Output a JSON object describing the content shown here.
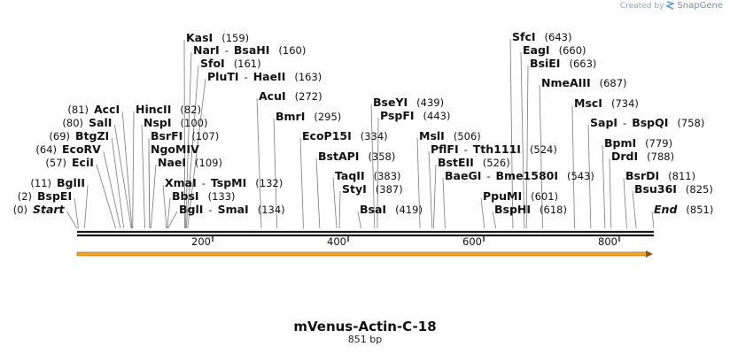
{
  "credit": {
    "prefix": "Created by",
    "brand": "SnapGene"
  },
  "plasmid": {
    "name": "mVenus-Actin-C-18",
    "length_label": "851 bp",
    "length": 851
  },
  "ruler": {
    "ticks": [
      {
        "value": 200,
        "label": "200"
      },
      {
        "value": 400,
        "label": "400"
      },
      {
        "value": 600,
        "label": "600"
      },
      {
        "value": 800,
        "label": "800"
      }
    ]
  },
  "feature": {
    "name": "",
    "color": "#f5a623",
    "direction": "forward"
  },
  "colors": {
    "backbone": "#1a1a1a",
    "leader": "#7a7a7a",
    "feature": "#f5a623",
    "feature_outline": "#8a5a10"
  },
  "sites": [
    {
      "names": [
        "KasI"
      ],
      "pos": "(159)",
      "bp": 159
    },
    {
      "names": [
        "NarI",
        "BsaHI"
      ],
      "pos": "(160)",
      "bp": 160
    },
    {
      "names": [
        "SfoI"
      ],
      "pos": "(161)",
      "bp": 161
    },
    {
      "names": [
        "PluTI",
        "HaeII"
      ],
      "pos": "(163)",
      "bp": 163
    },
    {
      "names": [
        "AccI"
      ],
      "pos": "(81)",
      "bp": 81
    },
    {
      "names": [
        "SalI"
      ],
      "pos": "(80)",
      "bp": 80
    },
    {
      "names": [
        "BtgZI"
      ],
      "pos": "(69)",
      "bp": 69
    },
    {
      "names": [
        "EcoRV"
      ],
      "pos": "(64)",
      "bp": 64
    },
    {
      "names": [
        "EciI"
      ],
      "pos": "(57)",
      "bp": 57
    },
    {
      "names": [
        "BglII"
      ],
      "pos": "(11)",
      "bp": 11
    },
    {
      "names": [
        "BspEI"
      ],
      "pos": "(2)",
      "bp": 2
    },
    {
      "names": [
        "Start"
      ],
      "pos": "(0)",
      "bp": 0,
      "italic": true
    },
    {
      "names": [
        "HincII"
      ],
      "pos": "(82)",
      "bp": 82
    },
    {
      "names": [
        "NspI"
      ],
      "pos": "(100)",
      "bp": 100
    },
    {
      "names": [
        "BsrFI"
      ],
      "pos": "(107)",
      "bp": 107
    },
    {
      "names": [
        "NgoMIV"
      ],
      "pos": "",
      "bp": 107
    },
    {
      "names": [
        "NaeI"
      ],
      "pos": "(109)",
      "bp": 109
    },
    {
      "names": [
        "XmaI",
        "TspMI"
      ],
      "pos": "(132)",
      "bp": 132
    },
    {
      "names": [
        "BbsI"
      ],
      "pos": "(133)",
      "bp": 133
    },
    {
      "names": [
        "BglI",
        "SmaI"
      ],
      "pos": "(134)",
      "bp": 134
    },
    {
      "names": [
        "AcuI"
      ],
      "pos": "(272)",
      "bp": 272
    },
    {
      "names": [
        "BmrI"
      ],
      "pos": "(295)",
      "bp": 295
    },
    {
      "names": [
        "EcoP15I"
      ],
      "pos": "(334)",
      "bp": 334
    },
    {
      "names": [
        "BstAPI"
      ],
      "pos": "(358)",
      "bp": 358
    },
    {
      "names": [
        "TaqII"
      ],
      "pos": "(383)",
      "bp": 383
    },
    {
      "names": [
        "StyI"
      ],
      "pos": "(387)",
      "bp": 387
    },
    {
      "names": [
        "BsaI"
      ],
      "pos": "(419)",
      "bp": 419
    },
    {
      "names": [
        "BseYI"
      ],
      "pos": "(439)",
      "bp": 439
    },
    {
      "names": [
        "PspFI"
      ],
      "pos": "(443)",
      "bp": 443
    },
    {
      "names": [
        "MslI"
      ],
      "pos": "(506)",
      "bp": 506
    },
    {
      "names": [
        "PflFI",
        "Tth111I"
      ],
      "pos": "(524)",
      "bp": 524
    },
    {
      "names": [
        "BstEII"
      ],
      "pos": "(526)",
      "bp": 526
    },
    {
      "names": [
        "BaeGI",
        "Bme1580I"
      ],
      "pos": "(543)",
      "bp": 543
    },
    {
      "names": [
        "PpuMI"
      ],
      "pos": "(601)",
      "bp": 601
    },
    {
      "names": [
        "BspHI"
      ],
      "pos": "(618)",
      "bp": 618
    },
    {
      "names": [
        "SfcI"
      ],
      "pos": "(643)",
      "bp": 643
    },
    {
      "names": [
        "EagI"
      ],
      "pos": "(660)",
      "bp": 660
    },
    {
      "names": [
        "BsiEI"
      ],
      "pos": "(663)",
      "bp": 663
    },
    {
      "names": [
        "NmeAIII"
      ],
      "pos": "(687)",
      "bp": 687
    },
    {
      "names": [
        "MscI"
      ],
      "pos": "(734)",
      "bp": 734
    },
    {
      "names": [
        "SapI",
        "BspQI"
      ],
      "pos": "(758)",
      "bp": 758
    },
    {
      "names": [
        "BpmI"
      ],
      "pos": "(779)",
      "bp": 779
    },
    {
      "names": [
        "DrdI"
      ],
      "pos": "(788)",
      "bp": 788
    },
    {
      "names": [
        "BsrDI"
      ],
      "pos": "(811)",
      "bp": 811
    },
    {
      "names": [
        "Bsu36I"
      ],
      "pos": "(825)",
      "bp": 825
    },
    {
      "names": [
        "End"
      ],
      "pos": "(851)",
      "bp": 851,
      "italic": true
    }
  ]
}
